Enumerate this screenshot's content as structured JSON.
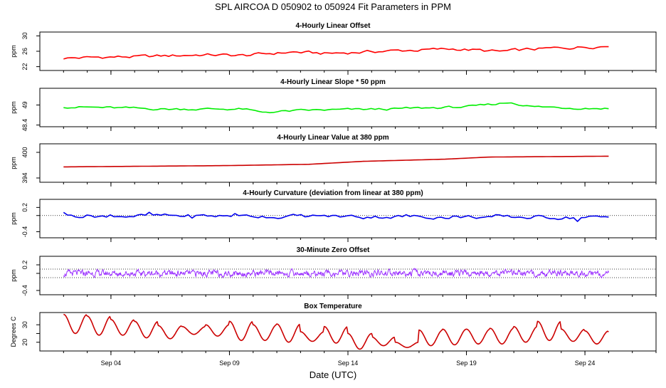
{
  "title": "SPL   AIRCOA D   050902 to 050924   Fit Parameters in PPM",
  "xlabel": "Date (UTC)",
  "x_tick_labels": [
    "Sep 04",
    "Sep 09",
    "Sep 14",
    "Sep 19",
    "Sep 24"
  ],
  "colors": {
    "offset": "#ff0000",
    "slope": "#00ee00",
    "value": "#cc0000",
    "curvature": "#0000ee",
    "zero": "#9b30ff",
    "temperature": "#cc0000",
    "dotted": "#000000"
  },
  "chart_data": [
    {
      "type": "line",
      "title": "4-Hourly Linear Offset",
      "ylabel": "ppm",
      "yticks": [
        22,
        26,
        30
      ],
      "ylim": [
        21,
        31
      ],
      "xlim": [
        "2005-09-01",
        "2005-09-27"
      ],
      "color": "#ff0000",
      "series": [
        {
          "x_start": "2005-09-02",
          "x_end": "2005-09-25",
          "knots": [
            [
              0,
              24.2
            ],
            [
              0.08,
              24.5
            ],
            [
              0.15,
              24.6
            ],
            [
              0.25,
              25.1
            ],
            [
              0.33,
              24.9
            ],
            [
              0.42,
              25.8
            ],
            [
              0.48,
              25.4
            ],
            [
              0.6,
              26.1
            ],
            [
              0.72,
              26.6
            ],
            [
              0.8,
              25.9
            ],
            [
              0.86,
              26.5
            ],
            [
              0.92,
              26.9
            ],
            [
              1,
              27.4
            ]
          ]
        }
      ]
    },
    {
      "type": "line",
      "title": "4-Hourly Linear Slope * 50 ppm",
      "ylabel": "ppm",
      "yticks": [
        48.4,
        49.0
      ],
      "ylim": [
        48.35,
        49.5
      ],
      "xlim": [
        "2005-09-01",
        "2005-09-27"
      ],
      "color": "#00ee00",
      "series": [
        {
          "x_start": "2005-09-02",
          "x_end": "2005-09-25",
          "knots": [
            [
              0,
              48.95
            ],
            [
              0.18,
              48.88
            ],
            [
              0.33,
              48.88
            ],
            [
              0.36,
              48.78
            ],
            [
              0.45,
              48.84
            ],
            [
              0.6,
              48.88
            ],
            [
              0.75,
              48.95
            ],
            [
              0.82,
              49.08
            ],
            [
              0.86,
              48.95
            ],
            [
              0.92,
              48.92
            ],
            [
              1,
              48.9
            ]
          ]
        }
      ]
    },
    {
      "type": "line",
      "title": "4-Hourly Linear Value at 380 ppm",
      "ylabel": "ppm",
      "yticks": [
        394,
        400
      ],
      "ylim": [
        393,
        402
      ],
      "xlim": [
        "2005-09-01",
        "2005-09-27"
      ],
      "color": "#cc0000",
      "series": [
        {
          "x_start": "2005-09-02",
          "x_end": "2005-09-25",
          "knots": [
            [
              0,
              396.6
            ],
            [
              0.3,
              396.9
            ],
            [
              0.45,
              397.2
            ],
            [
              0.55,
              397.9
            ],
            [
              0.7,
              398.4
            ],
            [
              0.78,
              398.9
            ],
            [
              1,
              399.1
            ]
          ]
        }
      ]
    },
    {
      "type": "line",
      "title": "4-Hourly Curvature (deviation from linear at 380 ppm)",
      "ylabel": "ppm",
      "yticks": [
        -0.4,
        0.0,
        0.2
      ],
      "ytick_labels": [
        "-0.4",
        "",
        "0.2"
      ],
      "ylim": [
        -0.55,
        0.4
      ],
      "xlim": [
        "2005-09-01",
        "2005-09-27"
      ],
      "color": "#0000ee",
      "reference_lines": [
        0.0
      ],
      "series": [
        {
          "x_start": "2005-09-02",
          "x_end": "2005-09-25",
          "knots": [
            [
              0,
              0.0
            ],
            [
              0.5,
              -0.02
            ],
            [
              1,
              -0.05
            ]
          ]
        }
      ]
    },
    {
      "type": "line",
      "title": "30-Minute Zero Offset",
      "ylabel": "ppm",
      "yticks": [
        -0.4,
        0.0,
        0.2
      ],
      "ytick_labels": [
        "-0.4",
        "",
        "0.2"
      ],
      "ylim": [
        -0.5,
        0.4
      ],
      "xlim": [
        "2005-09-01",
        "2005-09-27"
      ],
      "color": "#9b30ff",
      "reference_lines": [
        0.1,
        -0.1
      ],
      "series": [
        {
          "x_start": "2005-09-02",
          "x_end": "2005-09-25",
          "knots": [
            [
              0,
              0.0
            ],
            [
              0.5,
              0.0
            ],
            [
              1,
              0.0
            ]
          ]
        }
      ]
    },
    {
      "type": "line",
      "title": "Box Temperature",
      "ylabel": "Degrees C",
      "yticks": [
        20,
        25,
        30
      ],
      "ytick_labels": [
        "20",
        "",
        "30"
      ],
      "ylim": [
        15,
        37
      ],
      "xlim": [
        "2005-09-01",
        "2005-09-27"
      ],
      "color": "#cc0000",
      "series": [
        {
          "x_start": "2005-09-02",
          "x_end": "2005-09-25",
          "daily_max": [
            36,
            35,
            33,
            32,
            29.5,
            29,
            30,
            32,
            30,
            30.5,
            26,
            29,
            25,
            23,
            20,
            27,
            27.5,
            27.5,
            28,
            29,
            32,
            27.5,
            26.5,
            26
          ],
          "daily_min": [
            25,
            24,
            24,
            22.5,
            22,
            24.5,
            23.5,
            21,
            21,
            20,
            20.5,
            19.5,
            16,
            18,
            17,
            18,
            18.5,
            19,
            19,
            20,
            21,
            20.5,
            19,
            19
          ]
        }
      ]
    }
  ]
}
